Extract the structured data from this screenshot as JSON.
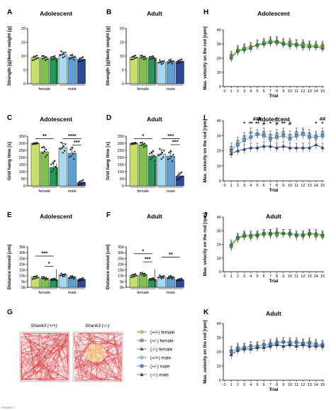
{
  "figure_label": "FIGURE 1",
  "colors": {
    "female_wt": "#c7e06a",
    "female_het": "#7fc24a",
    "female_ko": "#24995a",
    "male_wt": "#a9d9f0",
    "male_het": "#5e9fd4",
    "male_ko": "#2c4a93"
  },
  "legend": {
    "items": [
      {
        "label": "(+/+) female",
        "color": "#c7e06a",
        "marker": "circle"
      },
      {
        "label": "(+/-) female",
        "color": "#7fc24a",
        "marker": "square"
      },
      {
        "label": "(-/-) female",
        "color": "#24995a",
        "marker": "triangle"
      },
      {
        "label": "(+/+) male",
        "color": "#a9d9f0",
        "marker": "circle"
      },
      {
        "label": "(+/-) male",
        "color": "#5e9fd4",
        "marker": "square"
      },
      {
        "label": "(-/-) male",
        "color": "#2c4a93",
        "marker": "triangle"
      }
    ]
  },
  "panel_G": {
    "letter": "G",
    "labels": [
      "Shank3 (+/+)",
      "Shank3 (-/-)"
    ]
  },
  "chart_data": [
    {
      "panel": "A",
      "type": "bar",
      "title": "Adolescent",
      "ylabel": "Strength [g]/body weight [g]",
      "yticks": [
        "0",
        "5",
        "10",
        "15",
        "20"
      ],
      "ylim": [
        0,
        20
      ],
      "groups": [
        "female",
        "male"
      ],
      "series": [
        {
          "values": [
            9.5,
            9.3,
            9.2
          ]
        },
        {
          "values": [
            10.6,
            9.6,
            8.8
          ]
        }
      ],
      "errors": [
        [
          0.5,
          0.5,
          0.5
        ],
        [
          0.8,
          0.6,
          0.5
        ]
      ],
      "significance": []
    },
    {
      "panel": "B",
      "type": "bar",
      "title": "Adult",
      "ylabel": "Strength [g]/body weight [g]",
      "yticks": [
        "0",
        "5",
        "10",
        "15",
        "20"
      ],
      "ylim": [
        0,
        20
      ],
      "groups": [
        "female",
        "male"
      ],
      "series": [
        {
          "values": [
            9.6,
            9.5,
            9.3
          ]
        },
        {
          "values": [
            7.8,
            8.0,
            8.1
          ]
        }
      ],
      "errors": [
        [
          0.4,
          0.4,
          0.4
        ],
        [
          0.4,
          0.4,
          0.4
        ]
      ],
      "significance": []
    },
    {
      "panel": "C",
      "type": "bar",
      "title": "Adolescent",
      "ylabel": "Grid hang time [s]",
      "yticks": [
        "0",
        "50",
        "100",
        "150",
        "200",
        "250",
        "300",
        "350"
      ],
      "ylim": [
        0,
        350
      ],
      "groups": [
        "female",
        "male"
      ],
      "series": [
        {
          "values": [
            300,
            240,
            130
          ]
        },
        {
          "values": [
            270,
            230,
            25
          ]
        }
      ],
      "errors": [
        [
          0,
          30,
          40
        ],
        [
          30,
          35,
          10
        ]
      ],
      "significance": [
        {
          "label": "**",
          "from": [
            0,
            0
          ],
          "to": [
            0,
            2
          ],
          "y": 332
        },
        {
          "label": "****",
          "from": [
            1,
            0
          ],
          "to": [
            1,
            2
          ],
          "y": 332
        },
        {
          "label": "***",
          "from": [
            1,
            1
          ],
          "to": [
            1,
            2
          ],
          "y": 288
        }
      ]
    },
    {
      "panel": "D",
      "type": "bar",
      "title": "Adult",
      "ylabel": "Grid hang time [s]",
      "yticks": [
        "0",
        "50",
        "100",
        "150",
        "200",
        "250",
        "300",
        "350"
      ],
      "ylim": [
        0,
        350
      ],
      "groups": [
        "female",
        "male"
      ],
      "series": [
        {
          "values": [
            300,
            290,
            210
          ]
        },
        {
          "values": [
            225,
            210,
            70
          ]
        }
      ],
      "errors": [
        [
          0,
          10,
          30
        ],
        [
          30,
          30,
          20
        ]
      ],
      "significance": [
        {
          "label": "*",
          "from": [
            0,
            0
          ],
          "to": [
            0,
            2
          ],
          "y": 332
        },
        {
          "label": "***",
          "from": [
            1,
            0
          ],
          "to": [
            1,
            2
          ],
          "y": 332
        },
        {
          "label": "***",
          "from": [
            1,
            1
          ],
          "to": [
            1,
            2
          ],
          "y": 290
        }
      ]
    },
    {
      "panel": "E",
      "type": "bar",
      "title": "Adolescent",
      "ylabel": "Distance moved [cm]",
      "yticks": [
        "0k",
        "5k",
        "10k",
        "15k",
        "20k",
        "25k",
        "30k",
        "35k"
      ],
      "ylim": [
        0,
        35
      ],
      "groups": [
        "female",
        "male"
      ],
      "series": [
        {
          "values": [
            8.8,
            7.8,
            6.6
          ]
        },
        {
          "values": [
            10.6,
            8.6,
            6.8
          ]
        }
      ],
      "errors": [
        [
          0.8,
          0.7,
          0.5
        ],
        [
          0.8,
          0.7,
          0.6
        ]
      ],
      "significance": [
        {
          "label": "***",
          "from": [
            0,
            0
          ],
          "to": [
            0,
            2
          ],
          "y": 27
        },
        {
          "label": "*",
          "from": [
            0,
            1
          ],
          "to": [
            0,
            2
          ],
          "y": 18
        }
      ]
    },
    {
      "panel": "F",
      "type": "bar",
      "title": "Adult",
      "ylabel": "Distance moved [cm]",
      "yticks": [
        "0k",
        "5k",
        "10k",
        "15k",
        "20k",
        "25k",
        "30k",
        "35k"
      ],
      "ylim": [
        0,
        35
      ],
      "groups": [
        "female",
        "male"
      ],
      "series": [
        {
          "values": [
            10.4,
            11.2,
            6.8
          ]
        },
        {
          "values": [
            9.0,
            8.6,
            6.6
          ]
        }
      ],
      "errors": [
        [
          0.8,
          0.9,
          0.6
        ],
        [
          0.8,
          0.7,
          0.5
        ]
      ],
      "significance": [
        {
          "label": "*",
          "from": [
            0,
            0
          ],
          "to": [
            0,
            2
          ],
          "y": 29
        },
        {
          "label": "***",
          "from": [
            0,
            1
          ],
          "to": [
            0,
            2
          ],
          "y": 22
        },
        {
          "label": "**",
          "from": [
            1,
            0
          ],
          "to": [
            1,
            2
          ],
          "y": 26
        }
      ]
    },
    {
      "panel": "H",
      "type": "line",
      "title": "Adolescent",
      "xlabel": "Trial",
      "ylabel": "Max. velocity on the rod [rpm]",
      "x": [
        0,
        1,
        2,
        3,
        4,
        5,
        6,
        7,
        8,
        9,
        10,
        11,
        12,
        13,
        14,
        15
      ],
      "ylim": [
        0,
        40
      ],
      "yticks": [
        "0",
        "10",
        "20",
        "30",
        "40"
      ],
      "series": [
        {
          "values": [
            null,
            22,
            26,
            27,
            28,
            29,
            30,
            32,
            32,
            31,
            30,
            30,
            29,
            29,
            28,
            29
          ]
        },
        {
          "values": [
            null,
            21,
            25,
            27,
            28,
            29,
            31,
            32,
            31,
            30,
            31,
            29,
            30,
            29,
            29,
            28
          ]
        },
        {
          "values": [
            null,
            20,
            25,
            26,
            27,
            30,
            30,
            31,
            32,
            30,
            29,
            30,
            28,
            28,
            28,
            27
          ]
        }
      ],
      "error": 3,
      "markers": []
    },
    {
      "panel": "I",
      "type": "line",
      "title": "Adolescent",
      "xlabel": "Trial",
      "ylabel": "Max. velocity on the rod [rpm]",
      "x": [
        0,
        1,
        2,
        3,
        4,
        5,
        6,
        7,
        8,
        9,
        10,
        11,
        12,
        13,
        14,
        15
      ],
      "ylim": [
        0,
        40
      ],
      "yticks": [
        "0",
        "10",
        "20",
        "30",
        "40"
      ],
      "series": [
        {
          "values": [
            null,
            22,
            26,
            29,
            32,
            31,
            32,
            30,
            31,
            32,
            30,
            32,
            32,
            31,
            30,
            32
          ]
        },
        {
          "values": [
            null,
            20,
            24,
            27,
            29,
            31,
            30,
            28,
            29,
            30,
            28,
            30,
            31,
            29,
            29,
            30
          ]
        },
        {
          "values": [
            null,
            18,
            20,
            21,
            22,
            22,
            23,
            23,
            22,
            23,
            22,
            22,
            22,
            22,
            24,
            22
          ]
        }
      ],
      "error": 3,
      "markers": [
        {
          "x": 3,
          "label": "*"
        },
        {
          "x": 4,
          "label": "**"
        },
        {
          "x": 5,
          "label": "###\n**"
        },
        {
          "x": 6,
          "label": "#"
        },
        {
          "x": 7,
          "label": "*"
        },
        {
          "x": 8,
          "label": "*\n#"
        },
        {
          "x": 9,
          "label": "**"
        },
        {
          "x": 10,
          "label": "#"
        },
        {
          "x": 14,
          "label": "*"
        },
        {
          "x": 15,
          "label": "##\n*"
        }
      ]
    },
    {
      "panel": "J",
      "type": "line",
      "title": "Adult",
      "xlabel": "Trial",
      "ylabel": "Max. velocity on the rod [rpm]",
      "x": [
        0,
        1,
        2,
        3,
        4,
        5,
        6,
        7,
        8,
        9,
        10,
        11,
        12,
        13,
        14,
        15
      ],
      "ylim": [
        0,
        40
      ],
      "yticks": [
        "0",
        "10",
        "20",
        "30",
        "40"
      ],
      "series": [
        {
          "values": [
            null,
            18,
            24,
            26,
            25,
            26,
            27,
            27,
            28,
            28,
            27,
            26,
            26,
            27,
            26,
            27
          ]
        },
        {
          "values": [
            null,
            19,
            25,
            27,
            26,
            27,
            28,
            28,
            27,
            28,
            28,
            27,
            27,
            28,
            27,
            26
          ]
        },
        {
          "values": [
            null,
            20,
            25,
            26,
            27,
            27,
            28,
            28,
            29,
            28,
            28,
            27,
            27,
            28,
            28,
            27
          ]
        }
      ],
      "error": 3,
      "markers": []
    },
    {
      "panel": "K",
      "type": "line",
      "title": "Adult",
      "xlabel": "Trial",
      "ylabel": "Max. velocity on the rod [rpm]",
      "x": [
        0,
        1,
        2,
        3,
        4,
        5,
        6,
        7,
        8,
        9,
        10,
        11,
        12,
        13,
        14,
        15
      ],
      "ylim": [
        0,
        40
      ],
      "yticks": [
        "0",
        "10",
        "20",
        "30",
        "40"
      ],
      "series": [
        {
          "values": [
            null,
            21,
            23,
            23,
            24,
            24,
            25,
            26,
            27,
            27,
            27,
            26,
            26,
            27,
            26,
            25
          ]
        },
        {
          "values": [
            null,
            20,
            22,
            23,
            24,
            24,
            25,
            25,
            26,
            27,
            26,
            27,
            26,
            26,
            25,
            25
          ]
        },
        {
          "values": [
            null,
            18,
            21,
            22,
            22,
            23,
            23,
            24,
            25,
            24,
            25,
            24,
            25,
            24,
            24,
            24
          ]
        }
      ],
      "error": 3,
      "markers": []
    }
  ]
}
